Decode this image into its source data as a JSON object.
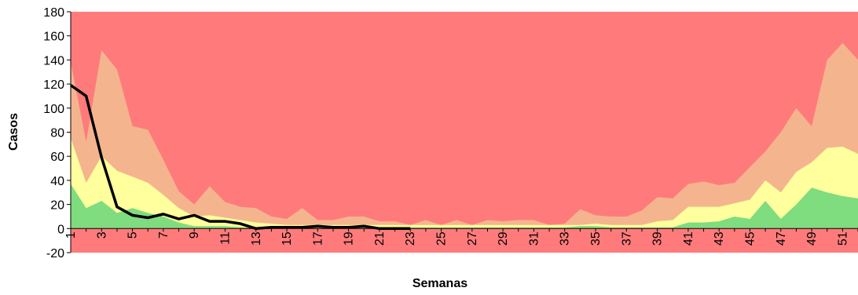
{
  "chart_data": {
    "type": "area",
    "xlabel": "Semanas",
    "ylabel": "Casos",
    "ylim": [
      -20,
      180
    ],
    "xlim": [
      1,
      52
    ],
    "y_ticks": [
      -20,
      0,
      20,
      40,
      60,
      80,
      100,
      120,
      140,
      160,
      180
    ],
    "x_tick_labels": [
      "1",
      "3",
      "5",
      "7",
      "9",
      "11",
      "13",
      "15",
      "17",
      "19",
      "21",
      "23",
      "25",
      "27",
      "29",
      "31",
      "33",
      "35",
      "37",
      "39",
      "41",
      "43",
      "45",
      "47",
      "49",
      "51"
    ],
    "x": [
      1,
      2,
      3,
      4,
      5,
      6,
      7,
      8,
      9,
      10,
      11,
      12,
      13,
      14,
      15,
      16,
      17,
      18,
      19,
      20,
      21,
      22,
      23,
      24,
      25,
      26,
      27,
      28,
      29,
      30,
      31,
      32,
      33,
      34,
      35,
      36,
      37,
      38,
      39,
      40,
      41,
      42,
      43,
      44,
      45,
      46,
      47,
      48,
      49,
      50,
      51,
      52
    ],
    "grid": false,
    "legend": "none",
    "colors": {
      "background_zone": "#ff7b7b",
      "alert_zone": "#f4b58e",
      "security_zone": "#ffff9e",
      "success_zone": "#7fdc7f",
      "cases_line": "#000000"
    },
    "bands": {
      "success": [
        37,
        17,
        23,
        13,
        17,
        13,
        10,
        5,
        2,
        2,
        2,
        1,
        1,
        1,
        1,
        1,
        1,
        1,
        1,
        1,
        1,
        1,
        1,
        1,
        1,
        1,
        1,
        1,
        1,
        1,
        1,
        1,
        1,
        2,
        2,
        1,
        1,
        1,
        1,
        1,
        5,
        5,
        6,
        10,
        8,
        23,
        8,
        20,
        34,
        30,
        27,
        25
      ],
      "security": [
        75,
        38,
        60,
        48,
        43,
        38,
        28,
        17,
        10,
        11,
        9,
        7,
        5,
        4,
        3,
        3,
        3,
        3,
        3,
        3,
        3,
        3,
        3,
        3,
        3,
        3,
        3,
        3,
        3,
        3,
        3,
        3,
        3,
        3,
        4,
        3,
        3,
        3,
        6,
        7,
        18,
        18,
        18,
        21,
        24,
        40,
        30,
        47,
        55,
        67,
        68,
        62
      ],
      "alert": [
        138,
        72,
        148,
        132,
        85,
        82,
        57,
        31,
        20,
        35,
        22,
        18,
        17,
        10,
        8,
        17,
        7,
        7,
        10,
        10,
        6,
        6,
        3,
        7,
        3,
        7,
        3,
        7,
        6,
        7,
        7,
        3,
        4,
        16,
        11,
        10,
        10,
        15,
        26,
        25,
        37,
        39,
        36,
        38,
        51,
        64,
        80,
        100,
        85,
        140,
        154,
        140
      ]
    },
    "series": [
      {
        "name": "",
        "values": [
          119,
          110,
          59,
          18,
          11,
          9,
          12,
          8,
          11,
          6,
          6,
          4,
          0,
          1,
          1,
          1,
          2,
          1,
          1,
          2,
          0,
          0,
          0,
          null,
          null,
          null,
          null,
          null,
          null,
          null,
          null,
          null,
          null,
          null,
          null,
          null,
          null,
          null,
          null,
          null,
          null,
          null,
          null,
          null,
          null,
          null,
          null,
          null,
          null,
          null,
          null,
          null
        ]
      }
    ]
  }
}
